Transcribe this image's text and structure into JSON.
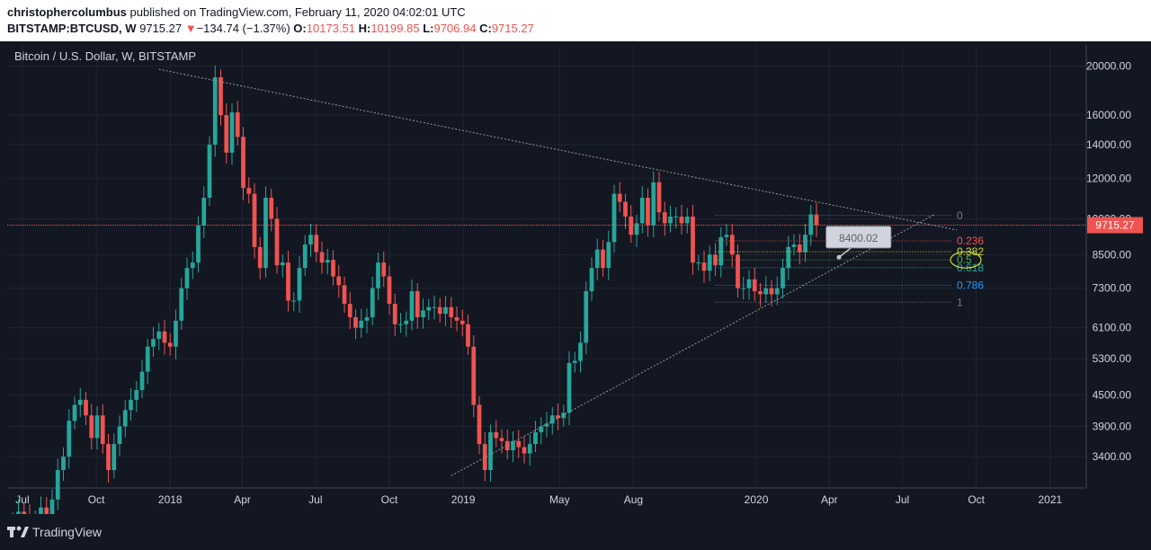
{
  "header": {
    "author": "christophercolumbus",
    "published": " published on TradingView.com, February 11, 2020 04:02:01 UTC",
    "symbol": "BITSTAMP:BTCUSD, W",
    "last": "9715.27",
    "change_arrow": "▼",
    "change": "−134.74 (−1.37%)",
    "open_label": "O:",
    "open": "10173.51",
    "high_label": "H:",
    "high": "10199.85",
    "low_label": "L:",
    "low": "9706.94",
    "close_label": "C:",
    "close": "9715.27"
  },
  "footer": {
    "brand": "TradingView",
    "logo_icon": "tradingview-logo-icon"
  },
  "colors": {
    "background": "#131722",
    "up": "#26a69a",
    "down": "#ef5350",
    "grid": "#1f2433",
    "axis_text": "#d1d4dc",
    "price_line": "#ef5350"
  },
  "chart_data": {
    "type": "candlestick",
    "title": "Bitcoin / U.S. Dollar, W, BITSTAMP",
    "y_scale": "log",
    "ylim": [
      2950,
      22000
    ],
    "y_ticks": [
      20000,
      16000,
      14000,
      12000,
      10000,
      8500,
      7300,
      6100,
      5300,
      4500,
      3900,
      3400
    ],
    "y_tick_labels": [
      "20000.00",
      "16000.00",
      "14000.00",
      "12000.00",
      "10000.00",
      "8500.00",
      "7300.00",
      "6100.00",
      "5300.00",
      "4500.00",
      "3900.00",
      "3400.00"
    ],
    "xlim": [
      "2017-06-12",
      "2021-02-15"
    ],
    "x_ticks": [
      {
        "date": "2017-07-01",
        "label": "Jul"
      },
      {
        "date": "2017-10-01",
        "label": "Oct"
      },
      {
        "date": "2018-01-01",
        "label": "2018"
      },
      {
        "date": "2018-04-01",
        "label": "Apr"
      },
      {
        "date": "2018-07-01",
        "label": "Jul"
      },
      {
        "date": "2018-10-01",
        "label": "Oct"
      },
      {
        "date": "2019-01-01",
        "label": "2019"
      },
      {
        "date": "2019-05-01",
        "label": "May"
      },
      {
        "date": "2019-08-01",
        "label": "Aug"
      },
      {
        "date": "2020-01-01",
        "label": "2020"
      },
      {
        "date": "2020-04-01",
        "label": "Apr"
      },
      {
        "date": "2020-07-01",
        "label": "Jul"
      },
      {
        "date": "2020-10-01",
        "label": "Oct"
      },
      {
        "date": "2021-01-01",
        "label": "2021"
      }
    ],
    "last_price": 9715.27,
    "last_price_label": "9715.27",
    "weekly_close": [
      2550,
      2650,
      2600,
      2500,
      2550,
      2700,
      2500,
      2800,
      3200,
      3400,
      4000,
      4300,
      4400,
      4100,
      3700,
      4100,
      3600,
      3200,
      3600,
      3900,
      4200,
      4400,
      4600,
      5000,
      5600,
      5800,
      6000,
      5700,
      5600,
      6300,
      7300,
      8000,
      8200,
      9700,
      11000,
      14000,
      19000,
      16000,
      13500,
      16200,
      14500,
      11500,
      11200,
      8800,
      8000,
      11000,
      10000,
      8100,
      8200,
      6900,
      6900,
      8000,
      8900,
      9300,
      8600,
      8200,
      8300,
      7700,
      7400,
      6800,
      6400,
      6100,
      6300,
      6400,
      7300,
      8200,
      7700,
      6800,
      6200,
      6200,
      6300,
      7200,
      6400,
      6600,
      6700,
      6700,
      6500,
      6700,
      6400,
      6300,
      6200,
      5600,
      4300,
      3600,
      3200,
      3800,
      3700,
      3650,
      3500,
      3650,
      3550,
      3450,
      3600,
      3800,
      3900,
      3950,
      4100,
      4050,
      4150,
      5200,
      5250,
      5700,
      7200,
      8000,
      8700,
      8000,
      9000,
      11200,
      10800,
      10100,
      9300,
      9800,
      11000,
      9700,
      11800,
      10300,
      9800,
      10100,
      10100,
      9800,
      10100,
      8200,
      8200,
      7900,
      8500,
      8100,
      9200,
      9300,
      8500,
      7300,
      7300,
      7600,
      7200,
      7100,
      7300,
      7100,
      7300,
      8000,
      8800,
      8900,
      8600,
      9300,
      10200,
      9715.27
    ],
    "trendlines": [
      {
        "from": {
          "date": "2017-12-18",
          "price": 19700
        },
        "to": {
          "date": "2020-09-07",
          "price": 9500
        }
      },
      {
        "from": {
          "date": "2018-12-17",
          "price": 3120
        },
        "to": {
          "date": "2020-08-10",
          "price": 10200
        }
      }
    ],
    "fibonacci": {
      "start_date": "2019-11-11",
      "end_date": "2020-08-31",
      "levels": [
        {
          "ratio": "0",
          "price": 10150,
          "color": "#787b86"
        },
        {
          "ratio": "0.236",
          "price": 9050,
          "color": "#ef5350"
        },
        {
          "ratio": "0.382",
          "price": 8610,
          "color": "#cddc39"
        },
        {
          "ratio": "0.5",
          "price": 8300,
          "color": "#4caf50"
        },
        {
          "ratio": "0.618",
          "price": 8010,
          "color": "#26a69a"
        },
        {
          "ratio": "0.786",
          "price": 7400,
          "color": "#2196f3"
        },
        {
          "ratio": "1",
          "price": 6850,
          "color": "#787b86"
        }
      ]
    },
    "callout": {
      "text": "8400.02",
      "date": "2020-04-06",
      "price": 9200,
      "anchor_date": "2020-04-13",
      "anchor_price": 8400
    }
  }
}
